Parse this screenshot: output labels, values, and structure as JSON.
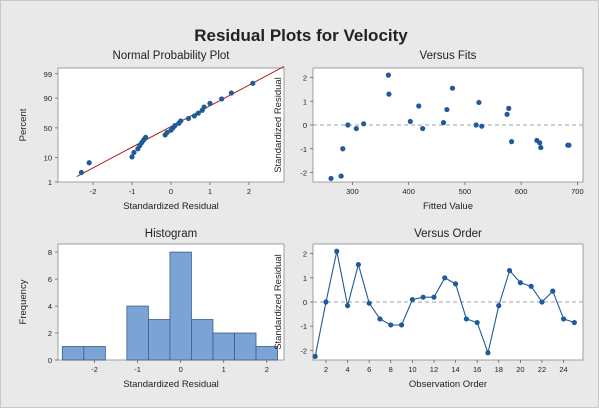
{
  "title": "Residual Plots for Velocity",
  "colors": {
    "marker": "#1f5a9a",
    "bar_fill": "#7ba3d6",
    "bar_edge": "#3a5d86",
    "fit_line": "#b01e1e",
    "plot_bg": "#ffffff",
    "panel_bg": "#e9e9e9",
    "zero_line": "#9aa3ad"
  },
  "chart_data": [
    {
      "type": "scatter",
      "title": "Normal Probability Plot",
      "xlabel": "Standardized Residual",
      "ylabel": "Percent",
      "xlim": [
        -2.9,
        2.9
      ],
      "yticks": [
        "1",
        "10",
        "50",
        "90",
        "99"
      ],
      "xticks": [
        "-2",
        "-1",
        "0",
        "1",
        "2"
      ],
      "grid": false,
      "reference_line": true,
      "y_scale": "normal-probability",
      "x": [
        -2.3,
        -2.1,
        -1.0,
        -0.95,
        -0.85,
        -0.8,
        -0.75,
        -0.7,
        -0.65,
        -0.15,
        -0.1,
        0.0,
        0.05,
        0.1,
        0.2,
        0.25,
        0.45,
        0.6,
        0.7,
        0.8,
        0.85,
        1.0,
        1.3,
        1.55,
        2.1
      ],
      "y": [
        2.76,
        6.69,
        10.63,
        14.57,
        18.5,
        22.44,
        26.38,
        30.31,
        34.25,
        38.19,
        42.13,
        46.06,
        50.0,
        53.94,
        57.87,
        61.81,
        65.75,
        69.69,
        73.62,
        77.56,
        81.5,
        85.43,
        89.37,
        93.31,
        97.24
      ]
    },
    {
      "type": "scatter",
      "title": "Versus Fits",
      "xlabel": "Fitted Value",
      "ylabel": "Standardized Residual",
      "xlim": [
        230,
        710
      ],
      "ylim": [
        -2.4,
        2.4
      ],
      "xticks": [
        "300",
        "400",
        "500",
        "600",
        "700"
      ],
      "yticks": [
        "-2",
        "-1",
        "0",
        "1",
        "2"
      ],
      "reference_line_y": 0,
      "x": [
        262,
        280,
        283,
        292,
        307,
        320,
        364,
        365,
        403,
        418,
        425,
        462,
        468,
        478,
        520,
        525,
        530,
        575,
        578,
        583,
        628,
        633,
        635,
        683,
        685
      ],
      "y": [
        -2.25,
        -2.15,
        -1.0,
        0.0,
        -0.15,
        0.05,
        2.1,
        1.3,
        0.15,
        0.8,
        -0.15,
        0.1,
        0.65,
        1.55,
        0.0,
        0.95,
        -0.05,
        0.45,
        0.7,
        -0.7,
        -0.65,
        -0.75,
        -0.95,
        -0.85,
        -0.85
      ]
    },
    {
      "type": "bar",
      "title": "Histogram",
      "xlabel": "Standardized Residual",
      "ylabel": "Frequency",
      "bin_edges": [
        -2.75,
        -2.25,
        -1.75,
        -1.25,
        -0.75,
        -0.25,
        0.25,
        0.75,
        1.25,
        1.75,
        2.25
      ],
      "values": [
        1,
        1,
        0,
        4,
        3,
        8,
        3,
        2,
        2,
        1
      ],
      "xlim": [
        -2.85,
        2.4
      ],
      "ylim": [
        0,
        8.6
      ],
      "xticks": [
        "-2",
        "-1",
        "0",
        "1",
        "2"
      ],
      "yticks": [
        "0",
        "2",
        "4",
        "6",
        "8"
      ]
    },
    {
      "type": "line",
      "title": "Versus Order",
      "xlabel": "Observation Order",
      "ylabel": "Standardized Residual",
      "xlim": [
        0.8,
        25.8
      ],
      "ylim": [
        -2.4,
        2.4
      ],
      "xticks": [
        "2",
        "4",
        "6",
        "8",
        "10",
        "12",
        "14",
        "16",
        "18",
        "20",
        "22",
        "24"
      ],
      "yticks": [
        "-2",
        "-1",
        "0",
        "1",
        "2"
      ],
      "reference_line_y": 0,
      "x": [
        1,
        2,
        3,
        4,
        5,
        6,
        7,
        8,
        9,
        10,
        11,
        12,
        13,
        14,
        15,
        16,
        17,
        18,
        19,
        20,
        21,
        22,
        23,
        24,
        25
      ],
      "y": [
        -2.25,
        0.0,
        2.1,
        -0.15,
        1.55,
        -0.05,
        -0.7,
        -0.95,
        -0.95,
        0.1,
        0.2,
        0.2,
        1.0,
        0.75,
        -0.7,
        -0.85,
        -2.1,
        -0.15,
        1.3,
        0.8,
        0.65,
        0.0,
        0.45,
        -0.7,
        -0.85
      ]
    }
  ]
}
